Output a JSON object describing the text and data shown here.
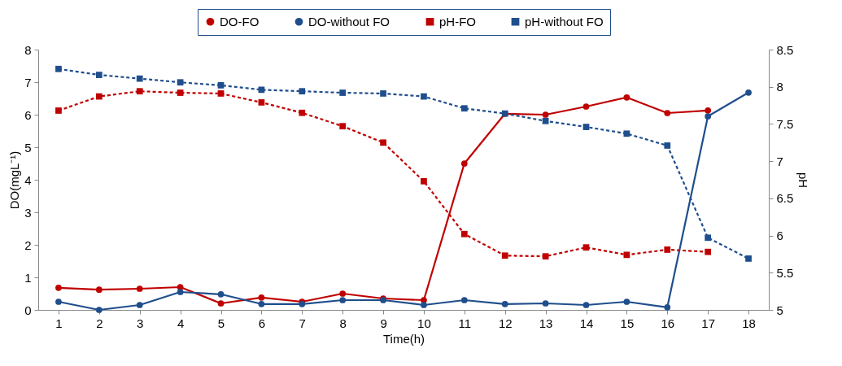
{
  "chart_data": {
    "type": "line",
    "xlabel": "Time(h)",
    "ylabel": "DO(mgL⁻¹)",
    "y2label": "pH",
    "x": [
      1,
      2,
      3,
      4,
      5,
      6,
      7,
      8,
      9,
      10,
      11,
      12,
      13,
      14,
      15,
      16,
      17,
      18
    ],
    "xlim": [
      0.5,
      18.5
    ],
    "xticks": [
      1,
      2,
      3,
      4,
      5,
      6,
      7,
      8,
      9,
      10,
      11,
      12,
      13,
      14,
      15,
      16,
      17,
      18
    ],
    "ylim": [
      0,
      8
    ],
    "yticks": [
      0,
      1,
      2,
      3,
      4,
      5,
      6,
      7,
      8
    ],
    "y2lim": [
      5,
      8.5
    ],
    "y2ticks": [
      5,
      5.5,
      6,
      6.5,
      7,
      7.5,
      8,
      8.5
    ],
    "grid": false,
    "legend": "top",
    "series": [
      {
        "name": "DO-FO",
        "color": "#c00000",
        "marker": "circle",
        "line_style": "solid",
        "values": [
          0.68,
          0.62,
          0.65,
          0.7,
          0.2,
          0.38,
          0.25,
          0.5,
          0.35,
          0.3,
          4.5,
          6.03,
          6.0,
          6.25,
          6.53,
          6.05,
          6.13,
          null
        ]
      },
      {
        "name": "DO-without FO",
        "color": "#1f4e8c",
        "marker": "circle",
        "line_style": "solid",
        "values": [
          0.25,
          0,
          0.15,
          0.55,
          0.48,
          0.18,
          0.18,
          0.3,
          0.3,
          0.15,
          0.3,
          0.18,
          0.2,
          0.15,
          0.25,
          0.08,
          5.95,
          6.68
        ]
      },
      {
        "name": "pH-FO",
        "color": "#c00000",
        "marker": "square",
        "line_style": "dashed",
        "axis": "y2",
        "values": [
          7.68,
          7.87,
          7.94,
          7.92,
          7.91,
          7.79,
          7.65,
          7.47,
          7.25,
          6.73,
          6.02,
          5.73,
          5.72,
          5.84,
          5.74,
          5.81,
          5.78,
          null
        ]
      },
      {
        "name": "pH-without FO",
        "color": "#1f4e8c",
        "marker": "square",
        "line_style": "dashed",
        "axis": "y2",
        "values": [
          8.24,
          8.16,
          8.11,
          8.06,
          8.02,
          7.96,
          7.94,
          7.92,
          7.91,
          7.87,
          7.71,
          7.64,
          7.54,
          7.46,
          7.37,
          7.21,
          5.97,
          5.69
        ]
      }
    ]
  }
}
